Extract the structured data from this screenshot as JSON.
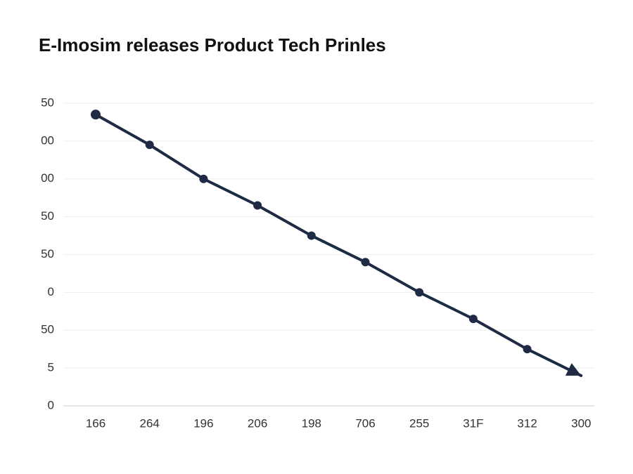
{
  "chart_data": {
    "type": "line",
    "title": "E-Imosim releases Product Tech Prinles",
    "categories": [
      "166",
      "264",
      "196",
      "206",
      "198",
      "706",
      "255",
      "31F",
      "312",
      "300"
    ],
    "series": [
      {
        "color": "#1f2a44",
        "values": [
          7.7,
          6.9,
          6.0,
          5.3,
          4.5,
          3.8,
          3.0,
          2.3,
          1.5,
          0.8
        ]
      }
    ],
    "ylim": [
      0,
      8
    ],
    "yticks": [
      {
        "value": 0,
        "label": "0"
      },
      {
        "value": 1,
        "label": "5"
      },
      {
        "value": 2,
        "label": "50"
      },
      {
        "value": 3,
        "label": "0"
      },
      {
        "value": 4,
        "label": "50"
      },
      {
        "value": 5,
        "label": "50"
      },
      {
        "value": 6,
        "label": "00"
      },
      {
        "value": 7,
        "label": "00"
      },
      {
        "value": 8,
        "label": "50"
      }
    ],
    "grid": true
  }
}
